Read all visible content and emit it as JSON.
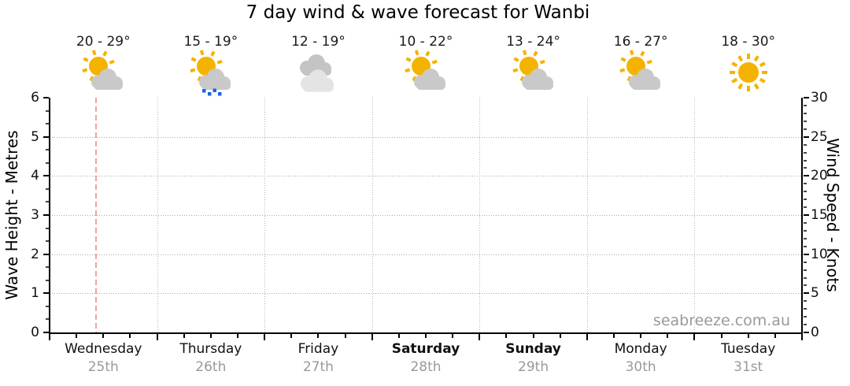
{
  "title": "7 day wind & wave forecast for Wanbi",
  "watermark": "seabreeze.com.au",
  "days": [
    {
      "name": "Wednesday",
      "date": "25th",
      "temps": "20 - 29°",
      "icon": "partly-cloudy",
      "bold": false
    },
    {
      "name": "Thursday",
      "date": "26th",
      "temps": "15 - 19°",
      "icon": "partly-cloudy-showers",
      "bold": false
    },
    {
      "name": "Friday",
      "date": "27th",
      "temps": "12 - 19°",
      "icon": "cloudy",
      "bold": false
    },
    {
      "name": "Saturday",
      "date": "28th",
      "temps": "10 - 22°",
      "icon": "partly-cloudy",
      "bold": true
    },
    {
      "name": "Sunday",
      "date": "29th",
      "temps": "13 - 24°",
      "icon": "partly-cloudy",
      "bold": true
    },
    {
      "name": "Monday",
      "date": "30th",
      "temps": "16 - 27°",
      "icon": "partly-cloudy",
      "bold": false
    },
    {
      "name": "Tuesday",
      "date": "31st",
      "temps": "18 - 30°",
      "icon": "sunny",
      "bold": false
    }
  ],
  "axis_left": {
    "title": "Wave Height - Metres",
    "ticks": [
      "0",
      "1",
      "2",
      "3",
      "4",
      "5",
      "6"
    ]
  },
  "axis_right": {
    "title": "Wind Speed - Knots",
    "ticks": [
      "0",
      "5",
      "10",
      "15",
      "20",
      "25",
      "30"
    ]
  },
  "colors": {
    "sun": "#F5B301",
    "cloud": "#C9C9C9",
    "cloud_back": "#C4C4C4",
    "cloud_front": "#E4E4E4",
    "rain": "#1C64E8",
    "marker": "#F2A29B",
    "grid": "#A8A8A8",
    "grid_v": "#B5B5B5",
    "muted": "#999999"
  },
  "chart_data": {
    "type": "line",
    "title": "7 day wind & wave forecast for Wanbi",
    "x_categories": [
      "Wednesday 25th",
      "Thursday 26th",
      "Friday 27th",
      "Saturday 28th",
      "Sunday 29th",
      "Monday 30th",
      "Tuesday 31st"
    ],
    "y_axes": [
      {
        "side": "left",
        "label": "Wave Height - Metres",
        "range": [
          0,
          6
        ],
        "ticks": [
          0,
          1,
          2,
          3,
          4,
          5,
          6
        ]
      },
      {
        "side": "right",
        "label": "Wind Speed - Knots",
        "range": [
          0,
          30
        ],
        "ticks": [
          0,
          5,
          10,
          15,
          20,
          25,
          30
        ]
      }
    ],
    "series": [],
    "notes": "Chart frame only — no wave-height or wind-speed series is plotted",
    "temperature_ranges_c": {
      "min": [
        20,
        15,
        12,
        10,
        13,
        16,
        18
      ],
      "max": [
        29,
        19,
        19,
        22,
        24,
        27,
        30
      ]
    },
    "conditions": [
      "partly-cloudy",
      "partly-cloudy-showers",
      "cloudy",
      "partly-cloudy",
      "partly-cloudy",
      "partly-cloudy",
      "sunny"
    ],
    "grid": true,
    "legend": false,
    "current_time_marker": {
      "day": "Wednesday",
      "fraction_of_day": 0.43
    }
  }
}
